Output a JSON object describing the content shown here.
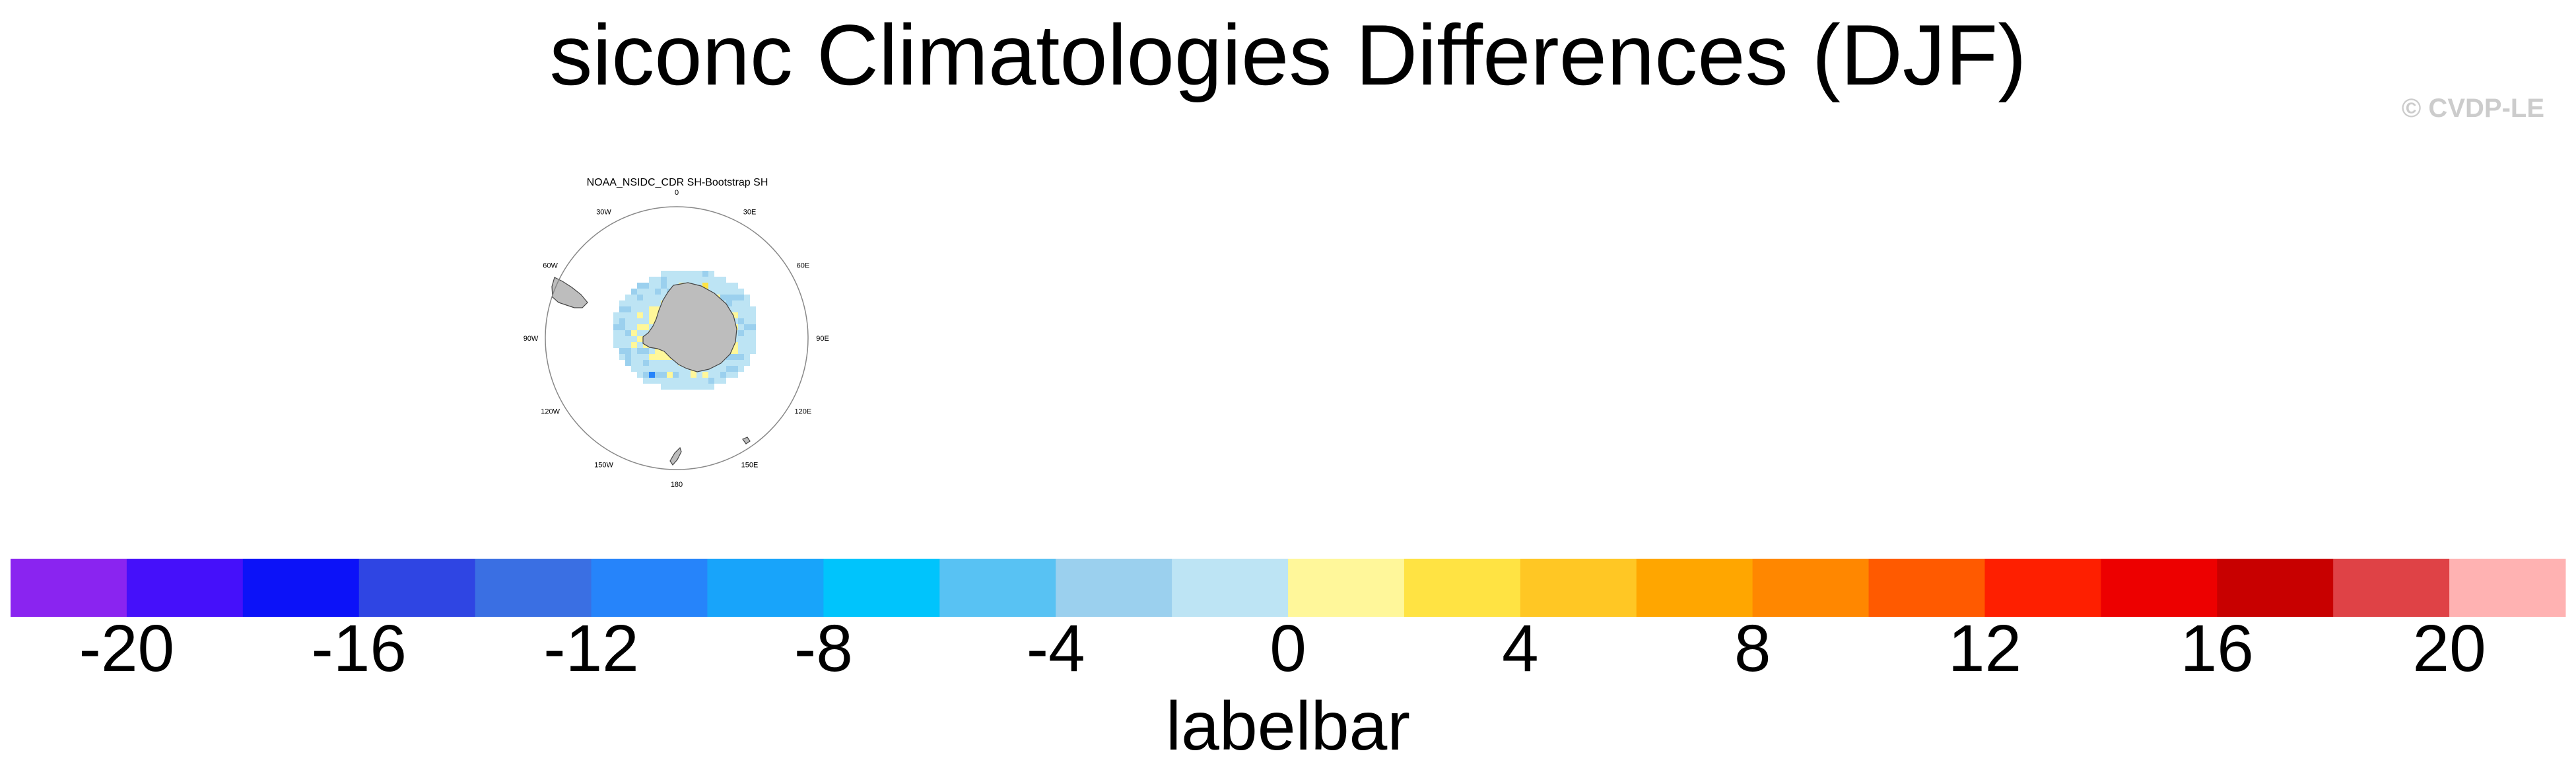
{
  "figure": {
    "title": "siconc Climatologies Differences (DJF)",
    "watermark": "© CVDP-LE"
  },
  "chart_data": {
    "type": "heatmap",
    "panel_title": "NOAA_NSIDC_CDR SH-Bootstrap SH",
    "projection": "south-polar-stereographic",
    "longitude_labels": [
      "0",
      "30E",
      "60E",
      "90E",
      "120E",
      "150E",
      "180",
      "150W",
      "120W",
      "90W",
      "60W",
      "30W"
    ],
    "colorbar": {
      "label": "labelbar",
      "tick_labels": [
        "-20",
        "-16",
        "-12",
        "-8",
        "-4",
        "0",
        "4",
        "8",
        "12",
        "16",
        "20"
      ],
      "levels": [
        -20,
        -18,
        -16,
        -14,
        -12,
        -10,
        -8,
        -6,
        -4,
        -2,
        0,
        2,
        4,
        6,
        8,
        10,
        12,
        14,
        16,
        18,
        20
      ],
      "colors": [
        "#8a24f0",
        "#4510fa",
        "#0c12f8",
        "#2f45e3",
        "#3a6fe3",
        "#2684fa",
        "#18a4fa",
        "#00c4fc",
        "#58c2f3",
        "#9bd0ee",
        "#bde4f4",
        "#fff79a",
        "#ffe343",
        "#ffc724",
        "#ffa600",
        "#ff8700",
        "#ff5a00",
        "#fe1f00",
        "#ed0000",
        "#c80000",
        "#df4246",
        "#ffb2b2"
      ]
    },
    "colors": {
      "land": "#bdbdbd",
      "coast": "#444444"
    }
  }
}
